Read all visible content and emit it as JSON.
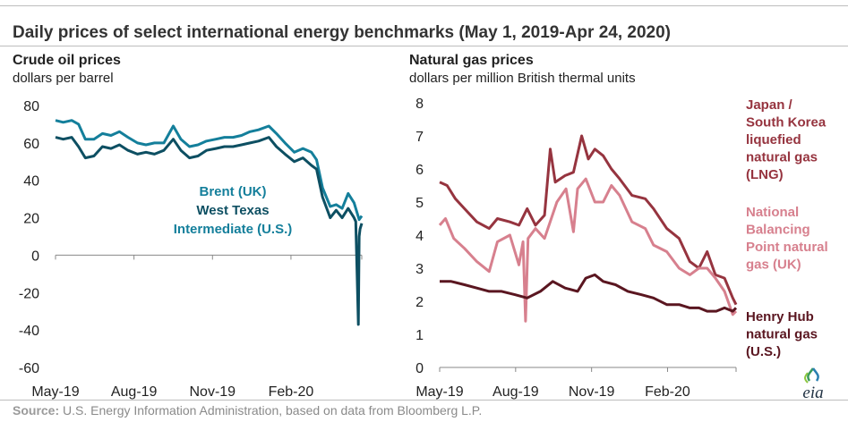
{
  "title": "Daily prices of select international energy benchmarks (May 1, 2019-Apr 24, 2020)",
  "source_label": "Source:",
  "source_text": "U.S. Energy Information Administration, based on data from Bloomberg L.P.",
  "logo_text": "eia",
  "colors": {
    "brent": "#147f9b",
    "wti": "#0d4f62",
    "jkm": "#96343f",
    "nbp": "#d7808e",
    "henry": "#5a1620",
    "axis": "#888888"
  },
  "chart_data": [
    {
      "type": "line",
      "title": "Crude oil prices",
      "ylabel": "dollars per barrel",
      "xlabel": "",
      "x_tick_labels": [
        "May-19",
        "Aug-19",
        "Nov-19",
        "Feb-20"
      ],
      "x_tick_dates": [
        "2019-05-01",
        "2019-08-01",
        "2019-11-01",
        "2020-02-01"
      ],
      "x_range": [
        "2019-05-01",
        "2020-04-24"
      ],
      "ylim": [
        -60,
        80
      ],
      "yticks": [
        80,
        60,
        40,
        20,
        0,
        -20,
        -40,
        -60
      ],
      "grid": false,
      "series": [
        {
          "name": "Brent (UK)",
          "color_key": "brent",
          "points": [
            [
              "2019-05-01",
              72
            ],
            [
              "2019-05-10",
              71
            ],
            [
              "2019-05-20",
              72
            ],
            [
              "2019-05-28",
              70
            ],
            [
              "2019-06-05",
              62
            ],
            [
              "2019-06-15",
              62
            ],
            [
              "2019-06-25",
              65
            ],
            [
              "2019-07-05",
              64
            ],
            [
              "2019-07-15",
              66
            ],
            [
              "2019-07-25",
              63
            ],
            [
              "2019-08-05",
              60
            ],
            [
              "2019-08-15",
              59
            ],
            [
              "2019-08-25",
              60
            ],
            [
              "2019-09-05",
              60
            ],
            [
              "2019-09-16",
              69
            ],
            [
              "2019-09-25",
              62
            ],
            [
              "2019-10-05",
              58
            ],
            [
              "2019-10-15",
              59
            ],
            [
              "2019-10-25",
              61
            ],
            [
              "2019-11-05",
              62
            ],
            [
              "2019-11-15",
              63
            ],
            [
              "2019-11-25",
              63
            ],
            [
              "2019-12-05",
              64
            ],
            [
              "2019-12-15",
              66
            ],
            [
              "2019-12-25",
              67
            ],
            [
              "2020-01-06",
              69
            ],
            [
              "2020-01-15",
              65
            ],
            [
              "2020-01-25",
              60
            ],
            [
              "2020-02-05",
              55
            ],
            [
              "2020-02-15",
              57
            ],
            [
              "2020-02-25",
              55
            ],
            [
              "2020-03-02",
              51
            ],
            [
              "2020-03-09",
              36
            ],
            [
              "2020-03-18",
              26
            ],
            [
              "2020-03-25",
              27
            ],
            [
              "2020-04-01",
              25
            ],
            [
              "2020-04-08",
              33
            ],
            [
              "2020-04-15",
              28
            ],
            [
              "2020-04-21",
              19
            ],
            [
              "2020-04-24",
              21
            ]
          ]
        },
        {
          "name": "West Texas Intermediate (U.S.)",
          "color_key": "wti",
          "points": [
            [
              "2019-05-01",
              63
            ],
            [
              "2019-05-10",
              62
            ],
            [
              "2019-05-20",
              63
            ],
            [
              "2019-05-28",
              58
            ],
            [
              "2019-06-05",
              52
            ],
            [
              "2019-06-15",
              53
            ],
            [
              "2019-06-25",
              58
            ],
            [
              "2019-07-05",
              57
            ],
            [
              "2019-07-15",
              59
            ],
            [
              "2019-07-25",
              56
            ],
            [
              "2019-08-05",
              54
            ],
            [
              "2019-08-15",
              55
            ],
            [
              "2019-08-25",
              54
            ],
            [
              "2019-09-05",
              56
            ],
            [
              "2019-09-16",
              62
            ],
            [
              "2019-09-25",
              56
            ],
            [
              "2019-10-05",
              52
            ],
            [
              "2019-10-15",
              53
            ],
            [
              "2019-10-25",
              56
            ],
            [
              "2019-11-05",
              57
            ],
            [
              "2019-11-15",
              58
            ],
            [
              "2019-11-25",
              58
            ],
            [
              "2019-12-05",
              59
            ],
            [
              "2019-12-15",
              60
            ],
            [
              "2019-12-25",
              61
            ],
            [
              "2020-01-06",
              63
            ],
            [
              "2020-01-15",
              58
            ],
            [
              "2020-01-25",
              54
            ],
            [
              "2020-02-05",
              50
            ],
            [
              "2020-02-15",
              52
            ],
            [
              "2020-02-25",
              48
            ],
            [
              "2020-03-02",
              46
            ],
            [
              "2020-03-09",
              31
            ],
            [
              "2020-03-18",
              20
            ],
            [
              "2020-03-25",
              24
            ],
            [
              "2020-04-01",
              20
            ],
            [
              "2020-04-08",
              25
            ],
            [
              "2020-04-15",
              20
            ],
            [
              "2020-04-17",
              18
            ],
            [
              "2020-04-20",
              -37
            ],
            [
              "2020-04-21",
              10
            ],
            [
              "2020-04-22",
              14
            ],
            [
              "2020-04-24",
              17
            ]
          ]
        }
      ],
      "labels": [
        {
          "text": "Brent (UK)",
          "color_key": "brent"
        },
        {
          "text": "West Texas",
          "color_key": "wti"
        },
        {
          "text": "Intermediate (U.S.)",
          "color_key": "brent"
        }
      ]
    },
    {
      "type": "line",
      "title": "Natural gas prices",
      "ylabel": "dollars per million British thermal units",
      "xlabel": "",
      "x_tick_labels": [
        "May-19",
        "Aug-19",
        "Nov-19",
        "Feb-20"
      ],
      "x_tick_dates": [
        "2019-05-01",
        "2019-08-01",
        "2019-11-01",
        "2020-02-01"
      ],
      "x_range": [
        "2019-05-01",
        "2020-04-24"
      ],
      "ylim": [
        0,
        8
      ],
      "yticks": [
        8,
        7,
        6,
        5,
        4,
        3,
        2,
        1,
        0
      ],
      "grid": false,
      "series": [
        {
          "name": "Japan / South Korea liquefied natural gas (LNG)",
          "color_key": "jkm",
          "points": [
            [
              "2019-05-01",
              5.6
            ],
            [
              "2019-05-10",
              5.5
            ],
            [
              "2019-05-20",
              5.1
            ],
            [
              "2019-05-31",
              4.8
            ],
            [
              "2019-06-15",
              4.4
            ],
            [
              "2019-06-30",
              4.2
            ],
            [
              "2019-07-10",
              4.5
            ],
            [
              "2019-07-25",
              4.4
            ],
            [
              "2019-08-05",
              4.3
            ],
            [
              "2019-08-15",
              4.8
            ],
            [
              "2019-08-25",
              4.3
            ],
            [
              "2019-09-05",
              4.6
            ],
            [
              "2019-09-12",
              6.6
            ],
            [
              "2019-09-18",
              5.6
            ],
            [
              "2019-09-30",
              5.8
            ],
            [
              "2019-10-10",
              5.9
            ],
            [
              "2019-10-20",
              7.0
            ],
            [
              "2019-10-28",
              6.3
            ],
            [
              "2019-11-05",
              6.6
            ],
            [
              "2019-11-15",
              6.4
            ],
            [
              "2019-11-25",
              6.0
            ],
            [
              "2019-12-05",
              5.7
            ],
            [
              "2019-12-20",
              5.2
            ],
            [
              "2020-01-05",
              5.1
            ],
            [
              "2020-01-15",
              4.8
            ],
            [
              "2020-01-31",
              4.2
            ],
            [
              "2020-02-15",
              3.9
            ],
            [
              "2020-02-28",
              3.2
            ],
            [
              "2020-03-10",
              3.0
            ],
            [
              "2020-03-20",
              3.5
            ],
            [
              "2020-03-30",
              2.8
            ],
            [
              "2020-04-10",
              2.7
            ],
            [
              "2020-04-20",
              2.1
            ],
            [
              "2020-04-24",
              1.9
            ]
          ]
        },
        {
          "name": "National Balancing Point natural gas (UK)",
          "color_key": "nbp",
          "points": [
            [
              "2019-05-01",
              4.3
            ],
            [
              "2019-05-08",
              4.5
            ],
            [
              "2019-05-18",
              3.9
            ],
            [
              "2019-05-31",
              3.6
            ],
            [
              "2019-06-15",
              3.2
            ],
            [
              "2019-06-30",
              2.9
            ],
            [
              "2019-07-10",
              3.8
            ],
            [
              "2019-07-25",
              4.0
            ],
            [
              "2019-08-05",
              3.1
            ],
            [
              "2019-08-10",
              3.8
            ],
            [
              "2019-08-13",
              1.4
            ],
            [
              "2019-08-16",
              3.9
            ],
            [
              "2019-08-25",
              4.2
            ],
            [
              "2019-09-05",
              3.9
            ],
            [
              "2019-09-20",
              5.0
            ],
            [
              "2019-10-01",
              5.4
            ],
            [
              "2019-10-10",
              4.1
            ],
            [
              "2019-10-15",
              5.4
            ],
            [
              "2019-10-25",
              5.7
            ],
            [
              "2019-11-05",
              5.0
            ],
            [
              "2019-11-15",
              5.0
            ],
            [
              "2019-11-25",
              5.5
            ],
            [
              "2019-12-05",
              5.2
            ],
            [
              "2019-12-20",
              4.4
            ],
            [
              "2020-01-05",
              4.2
            ],
            [
              "2020-01-15",
              3.7
            ],
            [
              "2020-01-31",
              3.5
            ],
            [
              "2020-02-15",
              3.0
            ],
            [
              "2020-02-28",
              2.8
            ],
            [
              "2020-03-10",
              3.0
            ],
            [
              "2020-03-20",
              3.0
            ],
            [
              "2020-03-30",
              2.7
            ],
            [
              "2020-04-10",
              2.3
            ],
            [
              "2020-04-20",
              1.6
            ],
            [
              "2020-04-24",
              1.7
            ]
          ]
        },
        {
          "name": "Henry Hub natural gas (U.S.)",
          "color_key": "henry",
          "points": [
            [
              "2019-05-01",
              2.6
            ],
            [
              "2019-05-15",
              2.6
            ],
            [
              "2019-05-31",
              2.5
            ],
            [
              "2019-06-15",
              2.4
            ],
            [
              "2019-06-30",
              2.3
            ],
            [
              "2019-07-15",
              2.3
            ],
            [
              "2019-07-31",
              2.2
            ],
            [
              "2019-08-15",
              2.1
            ],
            [
              "2019-08-31",
              2.3
            ],
            [
              "2019-09-15",
              2.6
            ],
            [
              "2019-09-30",
              2.4
            ],
            [
              "2019-10-15",
              2.3
            ],
            [
              "2019-10-25",
              2.7
            ],
            [
              "2019-11-05",
              2.8
            ],
            [
              "2019-11-15",
              2.6
            ],
            [
              "2019-11-30",
              2.5
            ],
            [
              "2019-12-15",
              2.3
            ],
            [
              "2019-12-31",
              2.2
            ],
            [
              "2020-01-15",
              2.1
            ],
            [
              "2020-01-31",
              1.9
            ],
            [
              "2020-02-15",
              1.9
            ],
            [
              "2020-02-28",
              1.8
            ],
            [
              "2020-03-10",
              1.8
            ],
            [
              "2020-03-20",
              1.7
            ],
            [
              "2020-03-31",
              1.7
            ],
            [
              "2020-04-10",
              1.8
            ],
            [
              "2020-04-20",
              1.7
            ],
            [
              "2020-04-24",
              1.8
            ]
          ]
        }
      ],
      "labels": [
        {
          "lines": [
            "Japan /",
            "South Korea",
            "liquefied",
            "natural gas",
            "(LNG)"
          ],
          "color_key": "jkm"
        },
        {
          "lines": [
            "National",
            "Balancing",
            "Point natural",
            "gas (UK)"
          ],
          "color_key": "nbp"
        },
        {
          "lines": [
            "Henry Hub",
            "natural gas",
            "(U.S.)"
          ],
          "color_key": "henry"
        }
      ]
    }
  ]
}
